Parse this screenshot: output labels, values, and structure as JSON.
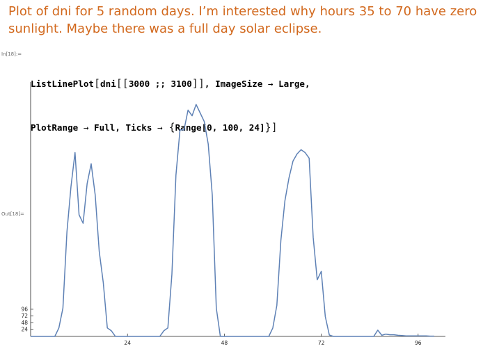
{
  "notebook_text": {
    "line1": "Plot of dni for 5 random days. I’m interested why hours 35 to 70 have zero",
    "line2": "sunlight. Maybe there was a full day solar eclipse."
  },
  "cells": {
    "input_label": "In[18]:=",
    "output_label": "Out[18]=",
    "input_line1": {
      "fn": "ListLinePlot",
      "open1": "[",
      "arg": "dni",
      "open2": "[[",
      "range": "3000 ;; 3100",
      "close2": "]]",
      "opt1": ", ImageSize ",
      "arrow1": "→",
      "opt1val": " Large,"
    },
    "input_line2": {
      "opt2": "PlotRange ",
      "arrow2": "→",
      "opt2val": " Full, Ticks ",
      "arrow3": "→",
      "brace_open": " {",
      "ticks_expr": "Range[0, 100, 24]",
      "brace_close": "}",
      "close1": "]"
    }
  },
  "chart_data": {
    "type": "line",
    "title": "",
    "xlabel": "",
    "ylabel": "",
    "x_ticks": [
      24,
      48,
      72,
      96
    ],
    "y_ticks": [
      24,
      48,
      72,
      96
    ],
    "xlim": [
      0,
      101
    ],
    "ylim": [
      0,
      860
    ],
    "series": [
      {
        "color": "#5e81b5",
        "x": [
          0,
          1,
          2,
          3,
          4,
          5,
          6,
          7,
          8,
          9,
          10,
          11,
          12,
          13,
          14,
          15,
          16,
          17,
          18,
          19,
          20,
          21,
          22,
          23,
          24,
          25,
          26,
          27,
          28,
          29,
          30,
          31,
          32,
          33,
          34,
          35,
          36,
          37,
          38,
          39,
          40,
          41,
          42,
          43,
          44,
          45,
          46,
          47,
          48,
          49,
          50,
          51,
          52,
          53,
          54,
          55,
          56,
          57,
          58,
          59,
          60,
          61,
          62,
          63,
          64,
          65,
          66,
          67,
          68,
          69,
          70,
          71,
          72,
          73,
          74,
          75,
          76,
          77,
          78,
          79,
          80,
          81,
          82,
          83,
          84,
          85,
          86,
          87,
          88,
          89,
          90,
          91,
          92,
          93,
          94,
          95,
          96,
          97,
          98,
          99,
          100
        ],
        "values": [
          0,
          0,
          0,
          0,
          0,
          0,
          0,
          30,
          100,
          370,
          530,
          650,
          430,
          400,
          540,
          610,
          500,
          300,
          190,
          30,
          20,
          0,
          0,
          0,
          0,
          0,
          0,
          0,
          0,
          0,
          0,
          0,
          0,
          20,
          30,
          220,
          570,
          730,
          730,
          800,
          780,
          820,
          790,
          760,
          680,
          500,
          100,
          0,
          0,
          0,
          0,
          0,
          0,
          0,
          0,
          0,
          0,
          0,
          0,
          0,
          30,
          110,
          340,
          480,
          560,
          620,
          645,
          660,
          650,
          630,
          350,
          200,
          230,
          70,
          5,
          0,
          0,
          0,
          0,
          0,
          0,
          0,
          0,
          0,
          0,
          0,
          22,
          4,
          8,
          6,
          6,
          4,
          3,
          2,
          2,
          2,
          2,
          2,
          2,
          1,
          1
        ]
      }
    ]
  }
}
